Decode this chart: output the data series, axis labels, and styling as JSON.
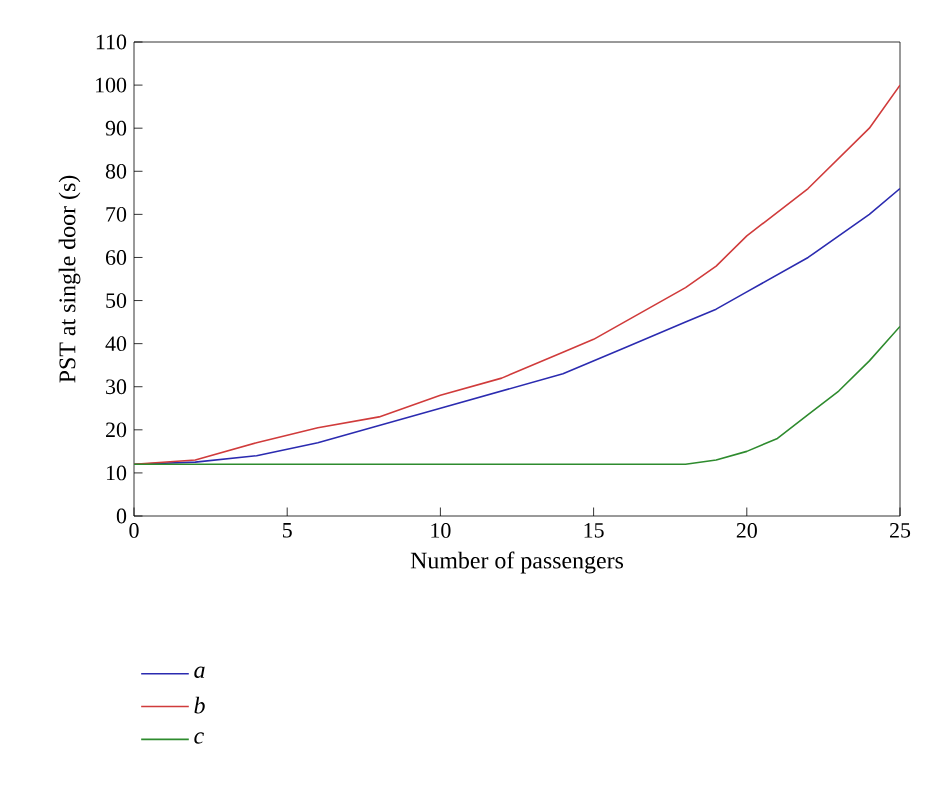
{
  "chart_data": {
    "type": "line",
    "xlabel": "Number of passengers",
    "ylabel": "PST at single door (s)",
    "xlim": [
      0,
      25
    ],
    "ylim": [
      0,
      110
    ],
    "xticks": [
      0,
      5,
      10,
      15,
      20,
      25
    ],
    "yticks": [
      0,
      10,
      20,
      30,
      40,
      50,
      60,
      70,
      80,
      90,
      100,
      110
    ],
    "legend": "bottom left",
    "grid": false,
    "series": [
      {
        "name": "a",
        "color": "#2b2bb0",
        "x": [
          0,
          2,
          4,
          6,
          8,
          10,
          12,
          14,
          16,
          18,
          19,
          20,
          22,
          24,
          25
        ],
        "values": [
          12,
          12.5,
          14,
          17,
          21,
          25,
          29,
          33,
          39,
          45,
          48,
          52,
          60,
          70,
          76
        ]
      },
      {
        "name": "b",
        "color": "#d03b3b",
        "x": [
          0,
          2,
          4,
          6,
          8,
          10,
          12,
          14,
          15,
          16,
          18,
          19,
          20,
          22,
          24,
          25
        ],
        "values": [
          12,
          13,
          17,
          20.5,
          23,
          28,
          32,
          38,
          41,
          45,
          53,
          58,
          65,
          76,
          90,
          100
        ]
      },
      {
        "name": "c",
        "color": "#2e8b2e",
        "x": [
          0,
          18,
          19,
          20,
          21,
          22,
          23,
          24,
          25
        ],
        "values": [
          12,
          12,
          13,
          15,
          18,
          23.5,
          29,
          36,
          44
        ]
      }
    ]
  }
}
